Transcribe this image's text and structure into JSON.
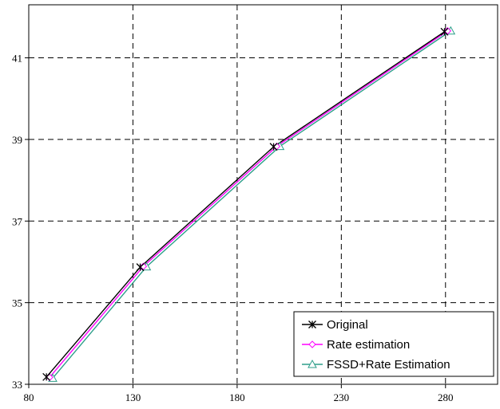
{
  "chart_data": {
    "type": "line",
    "title": "",
    "xlabel": "",
    "ylabel": "",
    "xlim": [
      80,
      305
    ],
    "ylim": [
      33,
      42.3
    ],
    "x_ticks": [
      80,
      130,
      180,
      230,
      280
    ],
    "y_ticks": [
      33,
      35,
      37,
      39,
      41
    ],
    "x_tick_labels": [
      "80",
      "130",
      "180",
      "230",
      "280"
    ],
    "y_tick_labels": [
      "33",
      "35",
      "37",
      "39",
      "41"
    ],
    "grid": true,
    "grid_style": "dashed",
    "legend_position": "bottom-right",
    "series": [
      {
        "name": "Original",
        "color": "#000000",
        "marker": "asterisk",
        "x": [
          88.5,
          133.5,
          197.5,
          279.5
        ],
        "y": [
          33.18,
          35.87,
          38.82,
          41.64
        ]
      },
      {
        "name": "Rate estimation",
        "color": "#ff00ff",
        "marker": "diamond",
        "x": [
          90,
          135,
          199,
          281
        ],
        "y": [
          33.17,
          35.89,
          38.83,
          41.66
        ]
      },
      {
        "name": "FSSD+Rate Estimation",
        "color": "#2e9e8a",
        "marker": "triangle",
        "x": [
          91.5,
          136.5,
          200.5,
          282.5
        ],
        "y": [
          33.15,
          35.88,
          38.83,
          41.66
        ]
      }
    ]
  }
}
